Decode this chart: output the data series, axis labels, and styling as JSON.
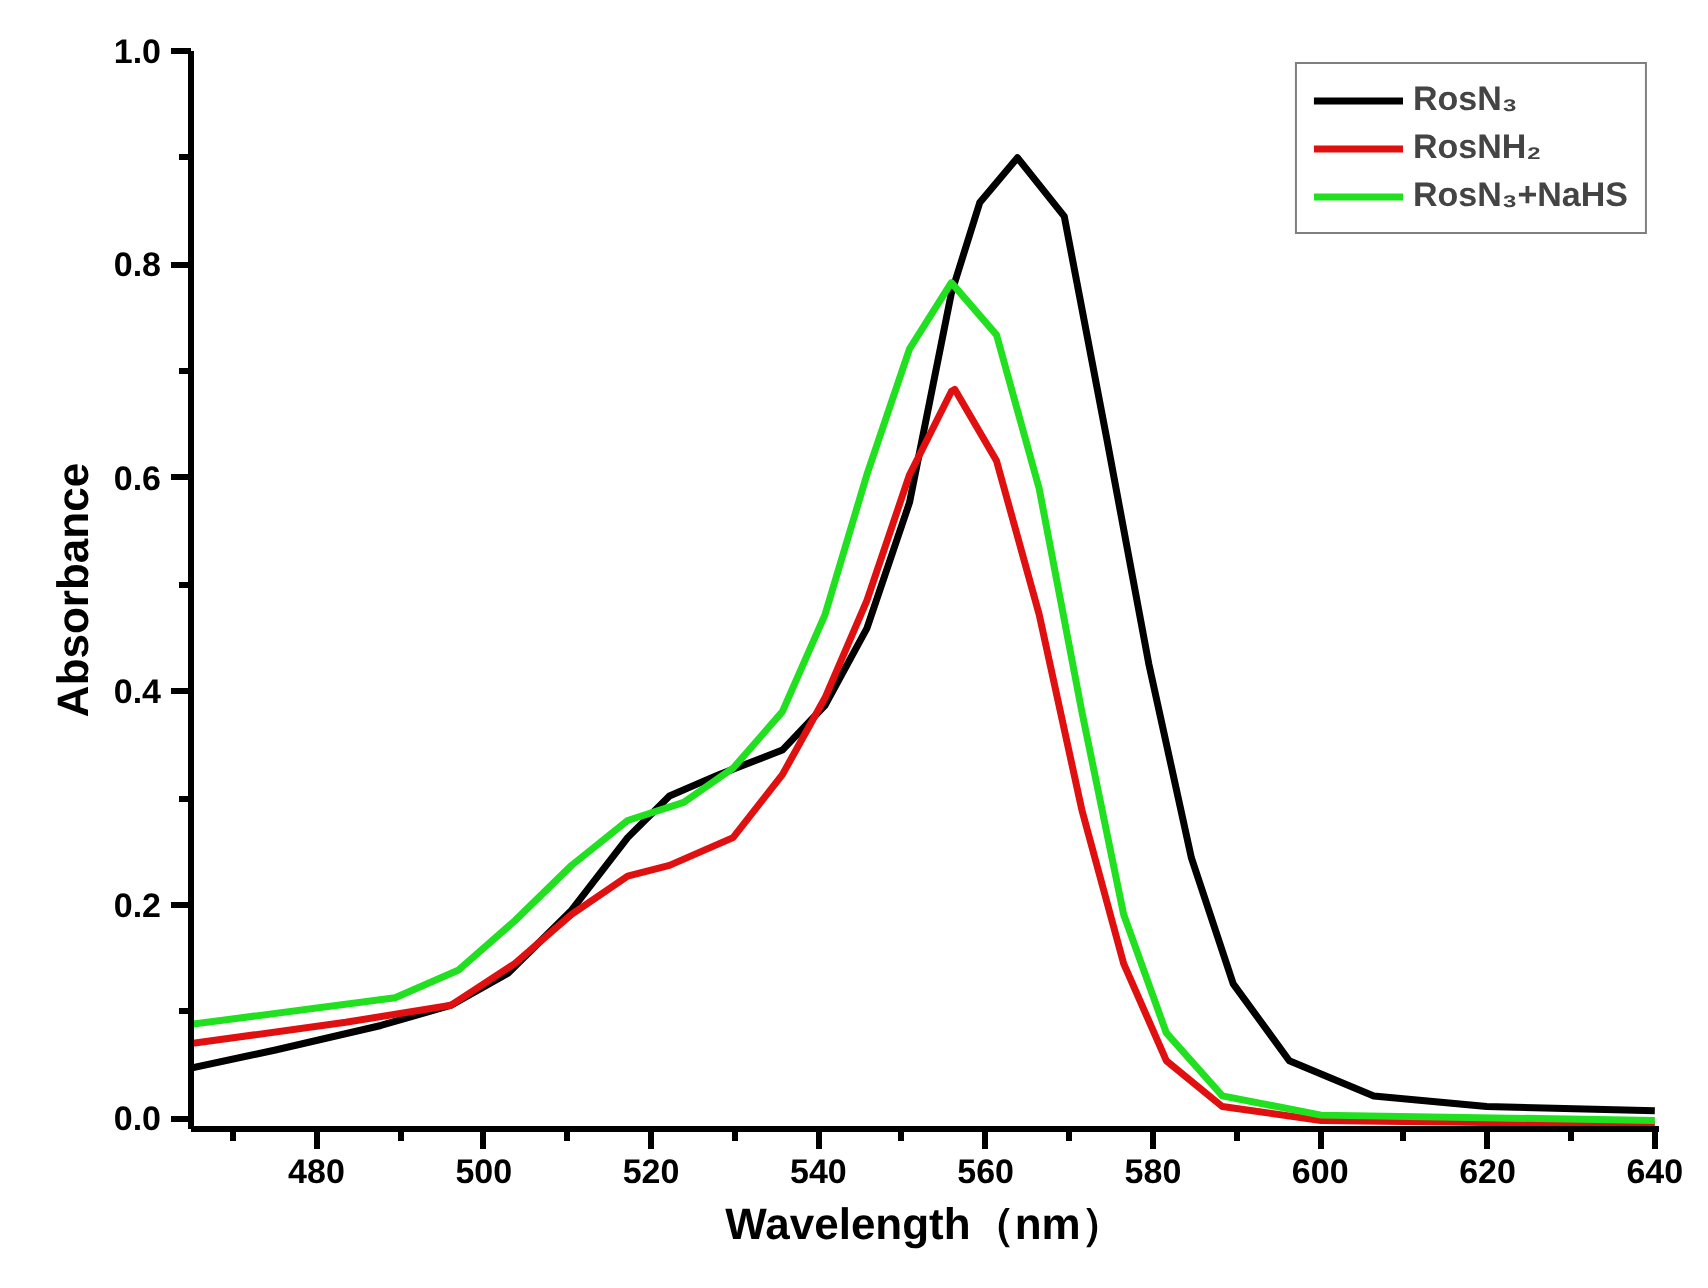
{
  "chart_data": {
    "type": "line",
    "xlabel": "Wavelength（nm）",
    "ylabel": "Absorbance",
    "xlim": [
      465,
      640.5
    ],
    "ylim": [
      -0.01,
      1.0
    ],
    "xticks": [
      {
        "value": 470,
        "label": null
      },
      480,
      {
        "value": 490,
        "label": null
      },
      500,
      {
        "value": 510,
        "label": null
      },
      520,
      {
        "value": 530,
        "label": null
      },
      540,
      {
        "value": 550,
        "label": null
      },
      560,
      {
        "value": 570,
        "label": null
      },
      580,
      {
        "value": 590,
        "label": null
      },
      600,
      {
        "value": 610,
        "label": null
      },
      620,
      {
        "value": 630,
        "label": null
      },
      640
    ],
    "yticks": [
      {
        "value": 0,
        "label": "0.0"
      },
      {
        "value": 0.1,
        "label": null
      },
      {
        "value": 0.2,
        "label": "0.2"
      },
      {
        "value": 0.3,
        "label": null
      },
      {
        "value": 0.4,
        "label": "0.4"
      },
      {
        "value": 0.5,
        "label": null
      },
      {
        "value": 0.6,
        "label": "0.6"
      },
      {
        "value": 0.7,
        "label": null
      },
      {
        "value": 0.8,
        "label": "0.8"
      },
      {
        "value": 0.9,
        "label": null
      },
      {
        "value": 1.0,
        "label": "1.0"
      }
    ],
    "grid": false,
    "legend": "top right",
    "line_style": "solid",
    "marker": "none",
    "series": [
      {
        "name": "RosN₃",
        "color": "#000000",
        "x": [
          465,
          475.1,
          487.7,
          496.1,
          502.9,
          510.5,
          517.2,
          522.2,
          528.1,
          535.7,
          540.8,
          545.8,
          550.9,
          555.9,
          559.3,
          563.8,
          569.4,
          574.5,
          579.5,
          584.6,
          589.6,
          596.3,
          606.4,
          619.9,
          640
        ],
        "values": [
          0.047,
          0.064,
          0.087,
          0.106,
          0.136,
          0.195,
          0.263,
          0.302,
          0.322,
          0.345,
          0.387,
          0.459,
          0.577,
          0.773,
          0.858,
          0.9,
          0.845,
          0.636,
          0.426,
          0.244,
          0.126,
          0.054,
          0.021,
          0.011,
          0.007
        ]
      },
      {
        "name": "RosNH₂",
        "color": "#e01010",
        "x": [
          465,
          483.5,
          496.1,
          503.7,
          510.5,
          517.2,
          522.2,
          529.8,
          535.7,
          540.8,
          545.8,
          550.9,
          555.9,
          556.3,
          561.3,
          566.4,
          571.5,
          576.5,
          581.6,
          588.3,
          600.1,
          640
        ],
        "values": [
          0.07,
          0.09,
          0.106,
          0.145,
          0.191,
          0.227,
          0.237,
          0.263,
          0.322,
          0.394,
          0.485,
          0.603,
          0.681,
          0.683,
          0.616,
          0.472,
          0.289,
          0.145,
          0.054,
          0.011,
          -0.002,
          -0.006
        ]
      },
      {
        "name": "RosN₃+NaHS",
        "color": "#20e020",
        "x": [
          465,
          489.4,
          497.0,
          503.7,
          510.5,
          517.2,
          523.9,
          529.8,
          535.7,
          540.8,
          545.8,
          550.9,
          555.9,
          561.3,
          566.4,
          571.5,
          576.5,
          581.6,
          588.3,
          600.1,
          640
        ],
        "values": [
          0.088,
          0.113,
          0.139,
          0.185,
          0.237,
          0.279,
          0.296,
          0.328,
          0.381,
          0.472,
          0.603,
          0.721,
          0.783,
          0.734,
          0.59,
          0.381,
          0.191,
          0.08,
          0.021,
          0.003,
          -0.002
        ]
      }
    ]
  }
}
